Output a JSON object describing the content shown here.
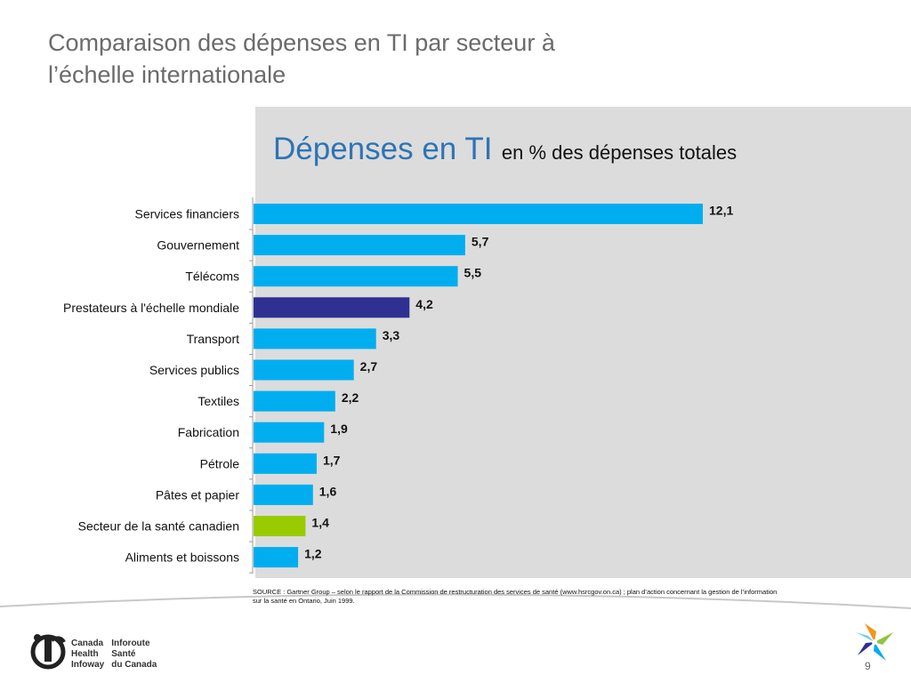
{
  "slide": {
    "title_lines": [
      "Comparaison des dépenses en TI par secteur à",
      "l’échelle internationale"
    ],
    "page_number": "9"
  },
  "chart_data": {
    "type": "bar",
    "orientation": "horizontal",
    "title": "Dépenses en TI",
    "subtitle": "en % des dépenses totales",
    "categories": [
      "Services financiers",
      "Gouvernement",
      "Télécoms",
      "Prestateurs à l'échelle mondiale",
      "Transport",
      "Services publics",
      "Textiles",
      "Fabrication",
      "Pétrole",
      "Pâtes et papier",
      "Secteur de la santé canadien",
      "Aliments et boissons"
    ],
    "values": [
      12.1,
      5.7,
      5.5,
      4.2,
      3.3,
      2.7,
      2.2,
      1.9,
      1.7,
      1.6,
      1.4,
      1.2
    ],
    "value_labels": [
      "12,1",
      "5,7",
      "5,5",
      "4,2",
      "3,3",
      "2,7",
      "2,2",
      "1,9",
      "1,7",
      "1,6",
      "1,4",
      "1,2"
    ],
    "colors": [
      "#00aeef",
      "#00aeef",
      "#00aeef",
      "#2e3192",
      "#00aeef",
      "#00aeef",
      "#00aeef",
      "#00aeef",
      "#00aeef",
      "#00aeef",
      "#99cc00",
      "#00aeef"
    ],
    "xlim": [
      0,
      12.1
    ],
    "grid": false
  },
  "source": "SOURCE : Gartner Group – selon le rapport de la Commission de restructuration des services de santé (www.hsrcgov.on.ca) ; plan d’action concernant la gestion de l’information sur la santé en Ontario, Juin 1999.",
  "logo": {
    "en_lines": [
      "Canada",
      "Health",
      "Infoway"
    ],
    "fr_lines": [
      "Inforoute",
      "Santé",
      "du Canada"
    ]
  }
}
